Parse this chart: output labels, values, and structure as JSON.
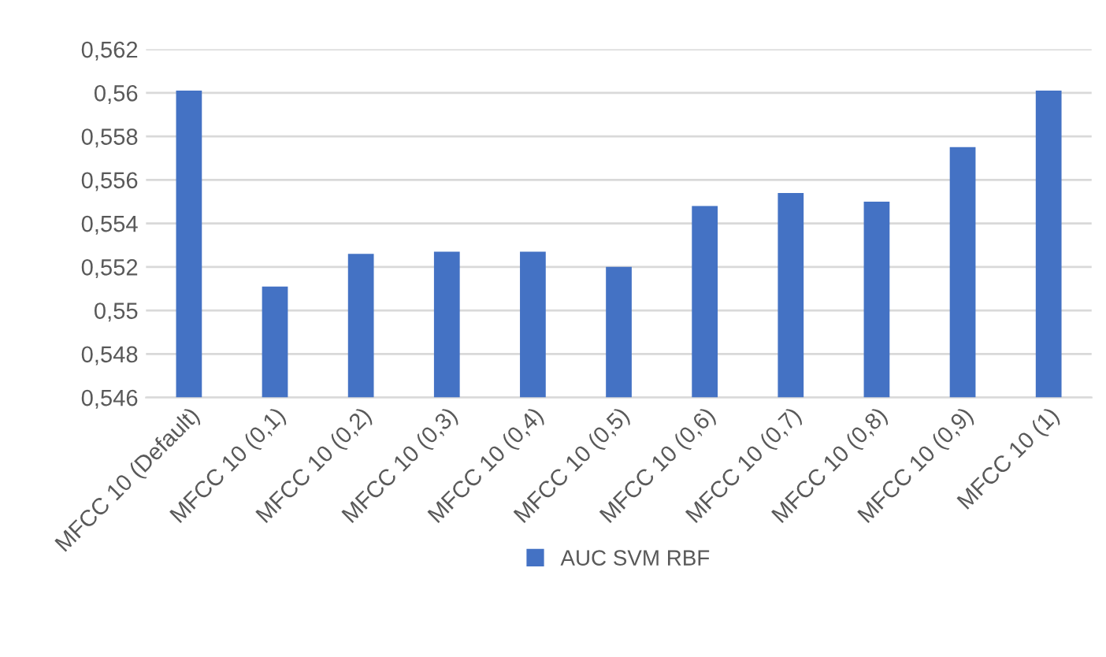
{
  "chart_data": {
    "type": "bar",
    "categories": [
      "MFCC 10 (Default)",
      "MFCC 10 (0,1)",
      "MFCC 10 (0,2)",
      "MFCC 10 (0,3)",
      "MFCC 10 (0,4)",
      "MFCC 10 (0,5)",
      "MFCC 10 (0,6)",
      "MFCC 10 (0,7)",
      "MFCC 10 (0,8)",
      "MFCC 10 (0,9)",
      "MFCC 10 (1)"
    ],
    "series": [
      {
        "name": "AUC SVM RBF",
        "color": "#4472c4",
        "values": [
          0.5601,
          0.5511,
          0.5526,
          0.5527,
          0.5527,
          0.552,
          0.5548,
          0.5554,
          0.555,
          0.5575,
          0.5601
        ]
      }
    ],
    "ylim": [
      0.546,
      0.562
    ],
    "yticks": [
      {
        "value": 0.546,
        "label": "0,546"
      },
      {
        "value": 0.548,
        "label": "0,548"
      },
      {
        "value": 0.55,
        "label": "0,55"
      },
      {
        "value": 0.552,
        "label": "0,552"
      },
      {
        "value": 0.554,
        "label": "0,554"
      },
      {
        "value": 0.556,
        "label": "0,556"
      },
      {
        "value": 0.558,
        "label": "0,558"
      },
      {
        "value": 0.56,
        "label": "0,56"
      },
      {
        "value": 0.562,
        "label": "0,562"
      }
    ],
    "grid": "y",
    "legend": "bottom"
  }
}
